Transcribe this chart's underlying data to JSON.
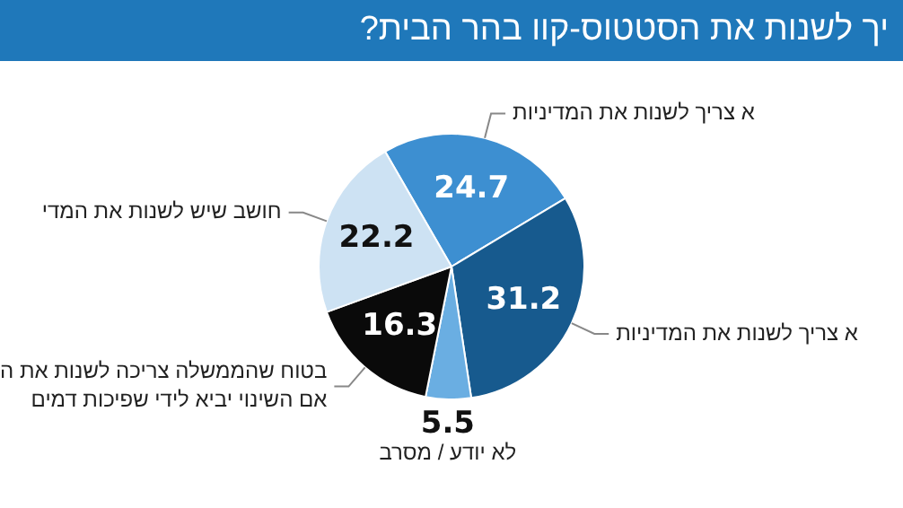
{
  "chart_data": {
    "type": "pie",
    "title": "יך לשנות את הסטטוס-קוו בהר הבית?",
    "categories": [
      "א צריך לשנות את המדיניות",
      "א צריך לשנות את המדיניות",
      "לא יודע / מסרב",
      "בטוח שהממשלה צריכה לשנות את ה\nאם השינוי יביא לידי שפיכות דמים",
      "חושב שיש לשנות את המדי"
    ],
    "values": [
      24.7,
      31.2,
      5.5,
      16.3,
      22.2
    ],
    "colors": [
      "#3d8fd1",
      "#175a8e",
      "#6aaee2",
      "#0a0a0a",
      "#cde2f3"
    ],
    "data_labels": true
  }
}
